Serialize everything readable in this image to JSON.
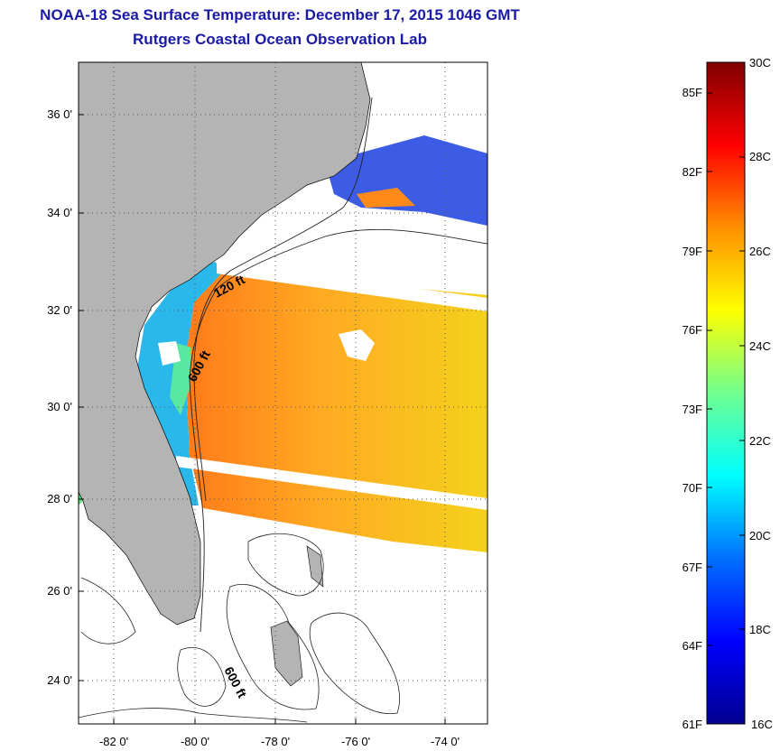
{
  "header": {
    "title": "NOAA-18 Sea Surface Temperature:  December 17, 2015 1046 GMT",
    "subtitle": "Rutgers Coastal Ocean Observation Lab"
  },
  "map": {
    "lon_range": [
      -83,
      -73
    ],
    "lat_range": [
      23,
      37
    ],
    "lon_ticks": [
      {
        "value": -82,
        "label": "-82 0'"
      },
      {
        "value": -80,
        "label": "-80 0'"
      },
      {
        "value": -78,
        "label": "-78 0'"
      },
      {
        "value": -76,
        "label": "-76 0'"
      },
      {
        "value": -74,
        "label": "-74 0'"
      }
    ],
    "lat_ticks": [
      {
        "value": 24,
        "label": "24 0'"
      },
      {
        "value": 26,
        "label": "26 0'"
      },
      {
        "value": 28,
        "label": "28 0'"
      },
      {
        "value": 30,
        "label": "30 0'"
      },
      {
        "value": 32,
        "label": "32 0'"
      },
      {
        "value": 34,
        "label": "34 0'"
      },
      {
        "value": 36,
        "label": "36 0'"
      }
    ],
    "grid": "dotted",
    "land_color": "#b4b4b4",
    "contour_labels": [
      "120 ft",
      "600 ft",
      "600 ft"
    ]
  },
  "colorbar": {
    "min_c": 16,
    "max_c": 30,
    "celsius_labels": [
      "30C",
      "28C",
      "26C",
      "24C",
      "22C",
      "20C",
      "18C",
      "16C"
    ],
    "fahrenheit_labels": [
      "85F",
      "82F",
      "79F",
      "76F",
      "73F",
      "70F",
      "67F",
      "64F",
      "61F"
    ],
    "colormap": "jet"
  }
}
